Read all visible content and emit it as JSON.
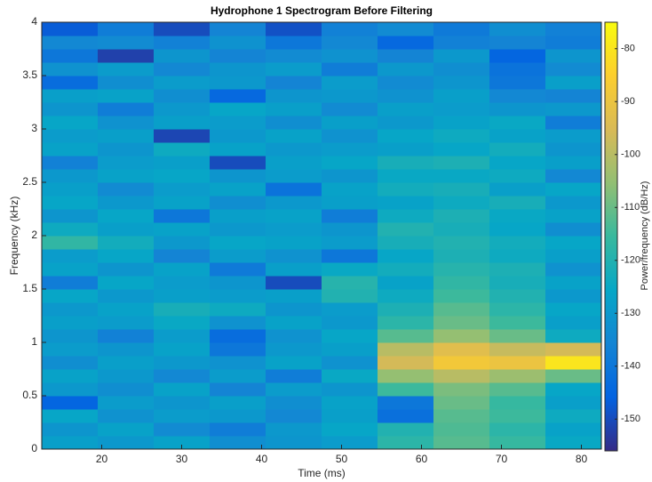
{
  "chart_data": {
    "type": "heatmap",
    "title": "Hydrophone 1 Spectrogram Before Filtering",
    "x_label": "Time (ms)",
    "y_label": "Frequency (kHz)",
    "colorbar_label": "Power/frequency (dB/Hz)",
    "x_edges": [
      12.5,
      19.5,
      26.5,
      33.5,
      40.5,
      47.5,
      54.5,
      61.5,
      68.5,
      75.5,
      82.5
    ],
    "y_edges": [
      0,
      0.125,
      0.25,
      0.375,
      0.5,
      0.625,
      0.75,
      0.875,
      1,
      1.125,
      1.25,
      1.375,
      1.5,
      1.625,
      1.75,
      1.875,
      2,
      2.125,
      2.25,
      2.375,
      2.5,
      2.625,
      2.75,
      2.875,
      3,
      3.125,
      3.25,
      3.375,
      3.5,
      3.625,
      3.75,
      3.875,
      4
    ],
    "z": [
      [
        -128,
        -130,
        -127,
        -133,
        -131,
        -129,
        -118,
        -112,
        -116,
        -125
      ],
      [
        -131,
        -127,
        -134,
        -138,
        -130,
        -126,
        -120,
        -113,
        -118,
        -127
      ],
      [
        -126,
        -132,
        -129,
        -130,
        -135,
        -128,
        -142,
        -112,
        -115,
        -124
      ],
      [
        -145,
        -129,
        -131,
        -128,
        -133,
        -127,
        -140,
        -110,
        -116,
        -128
      ],
      [
        -130,
        -133,
        -127,
        -136,
        -129,
        -131,
        -115,
        -108,
        -112,
        -126
      ],
      [
        -127,
        -130,
        -135,
        -129,
        -138,
        -125,
        -105,
        -100,
        -104,
        -110
      ],
      [
        -133,
        -128,
        -130,
        -132,
        -127,
        -132,
        -96,
        -88,
        -90,
        -80
      ],
      [
        -129,
        -131,
        -127,
        -140,
        -130,
        -128,
        -100,
        -93,
        -98,
        -96
      ],
      [
        -131,
        -137,
        -129,
        -143,
        -132,
        -126,
        -112,
        -105,
        -110,
        -124
      ],
      [
        -128,
        -129,
        -125,
        -132,
        -127,
        -130,
        -118,
        -110,
        -115,
        -128
      ],
      [
        -130,
        -127,
        -122,
        -124,
        -131,
        -129,
        -121,
        -112,
        -118,
        -126
      ],
      [
        -126,
        -130,
        -128,
        -129,
        -128,
        -120,
        -124,
        -115,
        -120,
        -130
      ],
      [
        -138,
        -126,
        -129,
        -131,
        -150,
        -119,
        -127,
        -117,
        -122,
        -127
      ],
      [
        -127,
        -131,
        -127,
        -139,
        -128,
        -125,
        -123,
        -119,
        -121,
        -132
      ],
      [
        -129,
        -126,
        -136,
        -129,
        -132,
        -140,
        -126,
        -121,
        -124,
        -128
      ],
      [
        -117,
        -123,
        -130,
        -126,
        -127,
        -129,
        -122,
        -120,
        -123,
        -126
      ],
      [
        -124,
        -128,
        -127,
        -130,
        -129,
        -131,
        -120,
        -122,
        -126,
        -133
      ],
      [
        -131,
        -126,
        -140,
        -128,
        -127,
        -138,
        -124,
        -121,
        -125,
        -127
      ],
      [
        -126,
        -130,
        -127,
        -133,
        -130,
        -128,
        -127,
        -124,
        -122,
        -130
      ],
      [
        -128,
        -134,
        -129,
        -127,
        -141,
        -127,
        -123,
        -122,
        -128,
        -126
      ],
      [
        -130,
        -127,
        -126,
        -131,
        -129,
        -131,
        -125,
        -125,
        -124,
        -135
      ],
      [
        -137,
        -129,
        -128,
        -150,
        -128,
        -126,
        -122,
        -121,
        -126,
        -128
      ],
      [
        -127,
        -131,
        -124,
        -127,
        -130,
        -129,
        -128,
        -126,
        -123,
        -131
      ],
      [
        -129,
        -128,
        -151,
        -130,
        -127,
        -132,
        -126,
        -124,
        -127,
        -129
      ],
      [
        -126,
        -132,
        -128,
        -129,
        -133,
        -128,
        -130,
        -127,
        -125,
        -138
      ],
      [
        -131,
        -138,
        -130,
        -126,
        -128,
        -134,
        -128,
        -129,
        -131,
        -130
      ],
      [
        -128,
        -127,
        -133,
        -144,
        -131,
        -130,
        -132,
        -128,
        -135,
        -136
      ],
      [
        -143,
        -133,
        -129,
        -130,
        -136,
        -129,
        -134,
        -131,
        -140,
        -128
      ],
      [
        -132,
        -129,
        -135,
        -131,
        -129,
        -138,
        -130,
        -133,
        -141,
        -134
      ],
      [
        -140,
        -152,
        -131,
        -136,
        -134,
        -132,
        -136,
        -130,
        -145,
        -131
      ],
      [
        -135,
        -134,
        -137,
        -132,
        -140,
        -135,
        -144,
        -137,
        -136,
        -138
      ],
      [
        -147,
        -138,
        -150,
        -136,
        -149,
        -137,
        -134,
        -139,
        -133,
        -137
      ]
    ],
    "xlim": [
      12.5,
      82.5
    ],
    "ylim": [
      0,
      4
    ],
    "xticks": [
      20,
      30,
      40,
      50,
      60,
      70,
      80
    ],
    "yticks": [
      0,
      0.5,
      1,
      1.5,
      2,
      2.5,
      3,
      3.5,
      4
    ],
    "clim": [
      -156,
      -75
    ],
    "cticks": [
      -150,
      -140,
      -130,
      -120,
      -110,
      -100,
      -90,
      -80
    ],
    "colormap": [
      "#352a87",
      "#0363e1",
      "#1485d4",
      "#06a7c6",
      "#38b99e",
      "#92bf73",
      "#d9ba56",
      "#fcce2e",
      "#f9fb0e"
    ]
  }
}
